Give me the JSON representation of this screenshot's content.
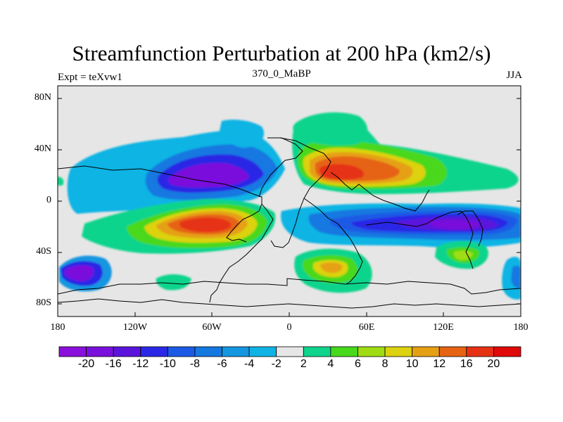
{
  "title": "Streamfunction Perturbation at 200 hPa (km2/s)",
  "subtitle_left": "Expt = teXvw1",
  "subtitle_center": "370_0_MaBP",
  "subtitle_right": "JJA",
  "y_ticks": [
    "80N",
    "40N",
    "0",
    "40S",
    "80S"
  ],
  "x_ticks": [
    "180",
    "120W",
    "60W",
    "0",
    "60E",
    "120E",
    "180"
  ],
  "colorbar": {
    "labels": [
      "-20",
      "-16",
      "-12",
      "-10",
      "-8",
      "-6",
      "-4",
      "-2",
      "2",
      "4",
      "6",
      "8",
      "10",
      "12",
      "16",
      "20"
    ],
    "colors": [
      "#8a10dc",
      "#7a10dc",
      "#5a14dc",
      "#2a28e6",
      "#1c5ae6",
      "#1478e0",
      "#1496e0",
      "#10b4e4",
      "#e6e6e6",
      "#10d48c",
      "#48d81c",
      "#a0dc14",
      "#dcd210",
      "#e6a014",
      "#e66414",
      "#e63214",
      "#e00a0a"
    ]
  }
}
